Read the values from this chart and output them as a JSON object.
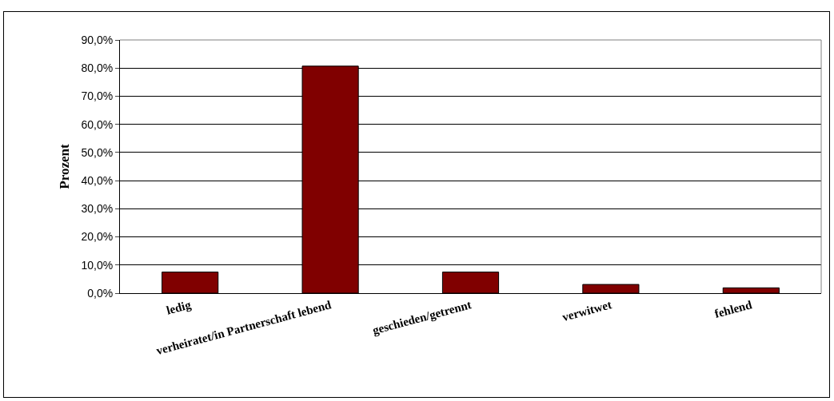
{
  "chart_data": {
    "type": "bar",
    "ylabel": "Prozent",
    "categories": [
      "ledig",
      "verheiratet/in Partnerschaft lebend",
      "geschieden/getrennt",
      "verwitwet",
      "fehlend"
    ],
    "values": [
      7.5,
      80.7,
      7.5,
      3.1,
      1.9
    ],
    "color": "#800000",
    "ylim": [
      0,
      90
    ],
    "yticks": [
      {
        "value": 0,
        "label": "0,0%"
      },
      {
        "value": 10,
        "label": "10,0%"
      },
      {
        "value": 20,
        "label": "20,0%"
      },
      {
        "value": 30,
        "label": "30,0%"
      },
      {
        "value": 40,
        "label": "40,0%"
      },
      {
        "value": 50,
        "label": "50,0%"
      },
      {
        "value": 60,
        "label": "60,0%"
      },
      {
        "value": 70,
        "label": "70,0%"
      },
      {
        "value": 80,
        "label": "80,0%"
      },
      {
        "value": 90,
        "label": "90,0%"
      }
    ],
    "grid": "y"
  }
}
